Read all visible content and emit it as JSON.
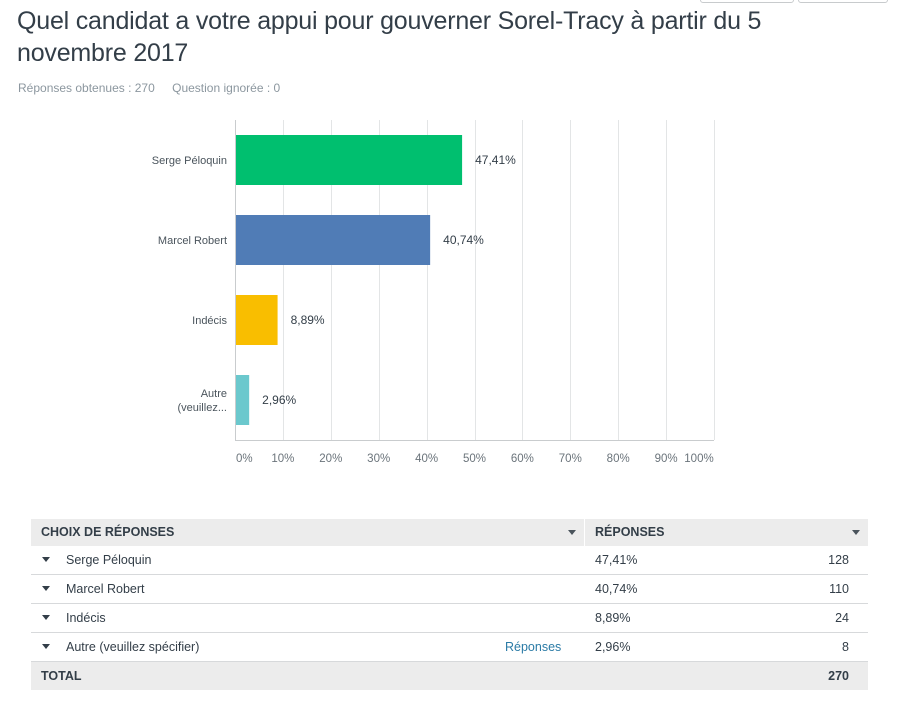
{
  "question": {
    "title": "Quel candidat a votre appui pour gouverner Sorel-Tracy à partir du 5 novembre 2017",
    "answered": "Réponses obtenues : 270",
    "skipped": "Question ignorée : 0"
  },
  "chart_data": {
    "type": "bar",
    "orientation": "horizontal",
    "categories": [
      "Serge Péloquin",
      "Marcel Robert",
      "Indécis",
      "Autre (veuillez..."
    ],
    "category_lines": [
      [
        "Serge Péloquin"
      ],
      [
        "Marcel Robert"
      ],
      [
        "Indécis"
      ],
      [
        "Autre",
        "(veuillez..."
      ]
    ],
    "values": [
      47.41,
      40.74,
      8.89,
      2.96
    ],
    "value_labels": [
      "47,41%",
      "40,74%",
      "8,89%",
      "2,96%"
    ],
    "colors": [
      "#00bf6f",
      "#507cb6",
      "#f9be00",
      "#6bc8cd"
    ],
    "xlim": [
      0,
      100
    ],
    "xticks": [
      0,
      10,
      20,
      30,
      40,
      50,
      60,
      70,
      80,
      90,
      100
    ],
    "xtick_labels": [
      "0%",
      "10%",
      "20%",
      "30%",
      "40%",
      "50%",
      "60%",
      "70%",
      "80%",
      "90%",
      "100%"
    ],
    "grid": true,
    "title": "",
    "xlabel": "",
    "ylabel": ""
  },
  "table": {
    "headers": {
      "choices": "CHOIX DE RÉPONSES",
      "responses": "RÉPONSES"
    },
    "rows": [
      {
        "choice": "Serge Péloquin",
        "percent": "47,41%",
        "count": "128"
      },
      {
        "choice": "Marcel Robert",
        "percent": "40,74%",
        "count": "110"
      },
      {
        "choice": "Indécis",
        "percent": "8,89%",
        "count": "24"
      },
      {
        "choice": "Autre (veuillez spécifier)",
        "link": "Réponses",
        "percent": "2,96%",
        "count": "8"
      }
    ],
    "total": {
      "label": "TOTAL",
      "count": "270"
    }
  }
}
